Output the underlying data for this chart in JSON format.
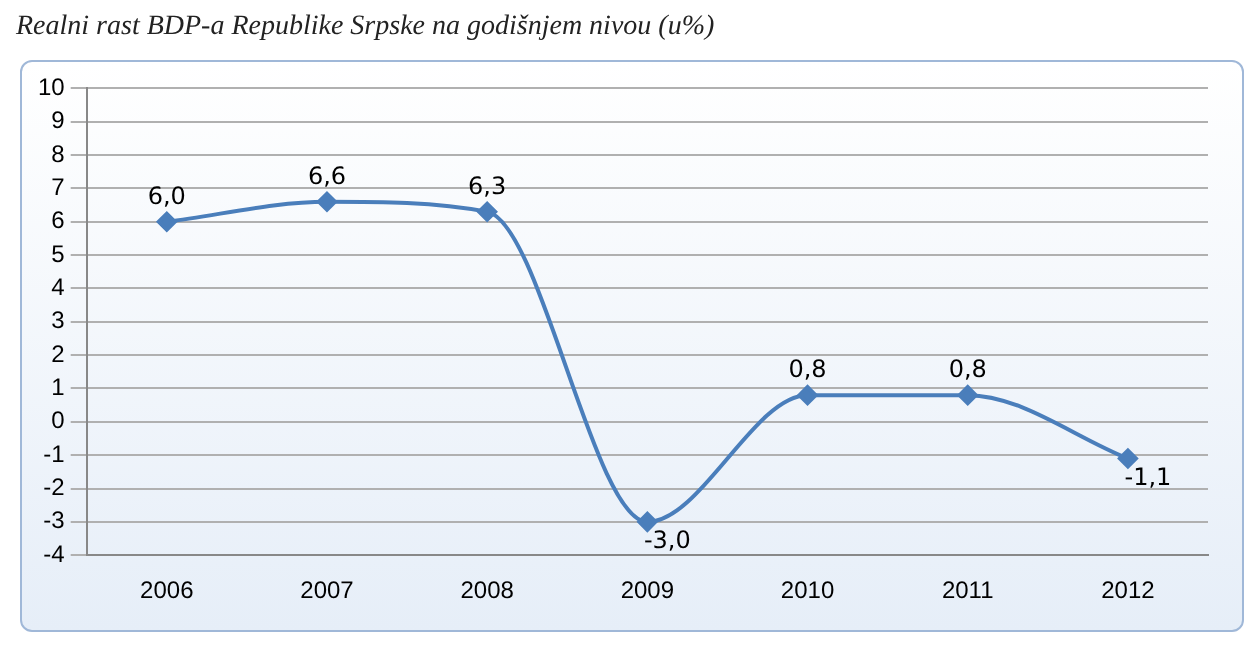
{
  "chart_data": {
    "type": "line",
    "title": "Realni rast BDP-a Republike Srpske na godišnjem nivou (u%)",
    "categories": [
      "2006",
      "2007",
      "2008",
      "2009",
      "2010",
      "2011",
      "2012"
    ],
    "series": [
      {
        "color": "#4a7ebb",
        "values": [
          6.0,
          6.6,
          6.3,
          -3.0,
          0.8,
          0.8,
          -1.1
        ],
        "value_labels": [
          "6,0",
          "6,6",
          "6,3",
          "-3,0",
          "0,8",
          "0,8",
          "-1,1"
        ]
      }
    ],
    "ylim": [
      -4,
      10
    ],
    "yticks": [
      -4,
      -3,
      -2,
      -1,
      0,
      1,
      2,
      3,
      4,
      5,
      6,
      7,
      8,
      9,
      10
    ],
    "grid": "y",
    "legend": false,
    "marker": "diamond",
    "line_style": "solid"
  }
}
